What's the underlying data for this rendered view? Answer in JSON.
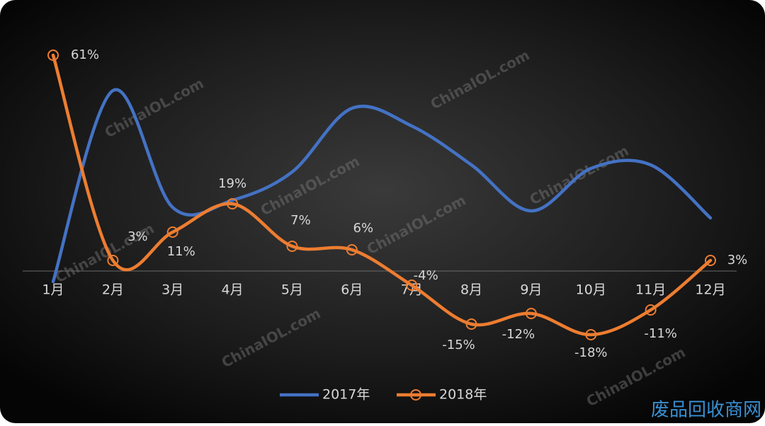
{
  "chart_data": {
    "type": "line",
    "categories": [
      "1月",
      "2月",
      "3月",
      "4月",
      "5月",
      "6月",
      "7月",
      "8月",
      "9月",
      "10月",
      "11月",
      "12月"
    ],
    "series": [
      {
        "name": "2017年",
        "color": "#4472c4",
        "values": [
          -3,
          51,
          18,
          20,
          28,
          46,
          41,
          30,
          17,
          29,
          30,
          15
        ]
      },
      {
        "name": "2018年",
        "color": "#ed7d31",
        "values": [
          61,
          3,
          11,
          19,
          7,
          6,
          -4,
          -15,
          -12,
          -18,
          -11,
          3
        ],
        "value_labels": [
          "61%",
          "3%",
          "11%",
          "19%",
          "7%",
          "6%",
          "-4%",
          "-15%",
          "-12%",
          "-18%",
          "-11%",
          "3%"
        ],
        "markers": true
      }
    ],
    "legend": "bottom",
    "watermark": "ChinaIOL.com",
    "logo": "废品回收商网"
  }
}
